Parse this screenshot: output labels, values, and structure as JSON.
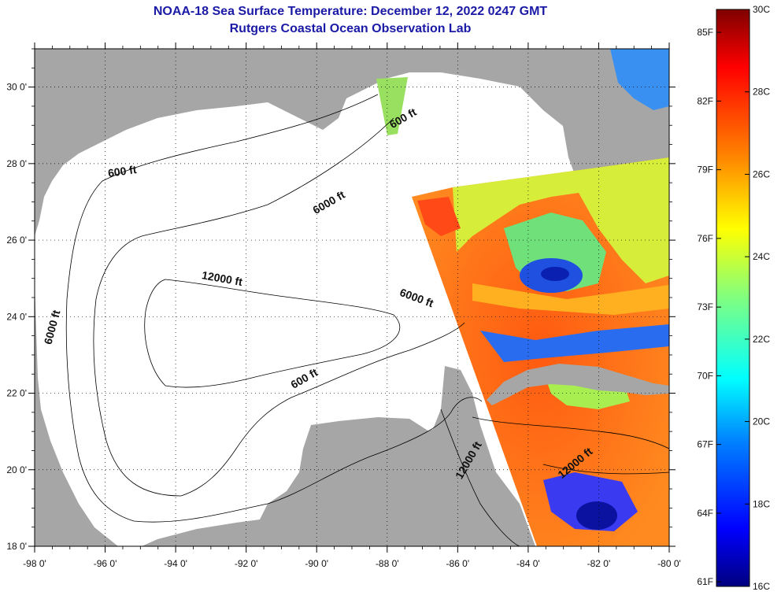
{
  "header": {
    "title": "NOAA-18 Sea Surface Temperature:  December 12, 2022 0247 GMT",
    "subtitle": "Rutgers Coastal Ocean Observation Lab"
  },
  "map": {
    "lon_range": [
      -98,
      -80
    ],
    "lat_range": [
      18,
      31
    ],
    "lon_ticks": [
      {
        "value": -98,
        "label": "-98 0'"
      },
      {
        "value": -96,
        "label": "-96 0'"
      },
      {
        "value": -94,
        "label": "-94 0'"
      },
      {
        "value": -92,
        "label": "-92 0'"
      },
      {
        "value": -90,
        "label": "-90 0'"
      },
      {
        "value": -88,
        "label": "-88 0'"
      },
      {
        "value": -86,
        "label": "-86 0'"
      },
      {
        "value": -84,
        "label": "-84 0'"
      },
      {
        "value": -82,
        "label": "-82 0'"
      },
      {
        "value": -80,
        "label": "-80 0'"
      }
    ],
    "lat_ticks": [
      {
        "value": 30,
        "label": "30 0'"
      },
      {
        "value": 28,
        "label": "28 0'"
      },
      {
        "value": 26,
        "label": "26 0'"
      },
      {
        "value": 24,
        "label": "24 0'"
      },
      {
        "value": 22,
        "label": "22 0'"
      },
      {
        "value": 20,
        "label": "20 0'"
      },
      {
        "value": 18,
        "label": "18 0'"
      }
    ],
    "contour_labels": [
      {
        "text": "600 ft",
        "lon": -87.5,
        "lat": 29.1,
        "angle": -30
      },
      {
        "text": "600 ft",
        "lon": -95.5,
        "lat": 27.7,
        "angle": -8
      },
      {
        "text": "6000 ft",
        "lon": -89.6,
        "lat": 26.9,
        "angle": -30
      },
      {
        "text": "6000 ft",
        "lon": -97.4,
        "lat": 23.7,
        "angle": -75
      },
      {
        "text": "12000 ft",
        "lon": -92.7,
        "lat": 24.9,
        "angle": 10
      },
      {
        "text": "6000 ft",
        "lon": -87.2,
        "lat": 24.4,
        "angle": 20
      },
      {
        "text": "600 ft",
        "lon": -90.3,
        "lat": 22.3,
        "angle": -30
      },
      {
        "text": "12000 ft",
        "lon": -85.6,
        "lat": 20.2,
        "angle": -60
      },
      {
        "text": "12000 ft",
        "lon": -82.6,
        "lat": 20.1,
        "angle": -40
      }
    ],
    "colors": {
      "land": "#a6a6a6",
      "water": "#ffffff",
      "title": "#1a1aa6"
    }
  },
  "colorbar": {
    "c_range": [
      16,
      30
    ],
    "c_ticks": [
      {
        "value": 30,
        "label": "30C"
      },
      {
        "value": 28,
        "label": "28C"
      },
      {
        "value": 26,
        "label": "26C"
      },
      {
        "value": 24,
        "label": "24C"
      },
      {
        "value": 22,
        "label": "22C"
      },
      {
        "value": 20,
        "label": "20C"
      },
      {
        "value": 18,
        "label": "18C"
      },
      {
        "value": 16,
        "label": "16C"
      }
    ],
    "f_ticks": [
      {
        "value": 85,
        "label": "85F"
      },
      {
        "value": 82,
        "label": "82F"
      },
      {
        "value": 79,
        "label": "79F"
      },
      {
        "value": 76,
        "label": "76F"
      },
      {
        "value": 73,
        "label": "73F"
      },
      {
        "value": 70,
        "label": "70F"
      },
      {
        "value": 67,
        "label": "67F"
      },
      {
        "value": 64,
        "label": "64F"
      },
      {
        "value": 61,
        "label": "61F"
      }
    ]
  }
}
